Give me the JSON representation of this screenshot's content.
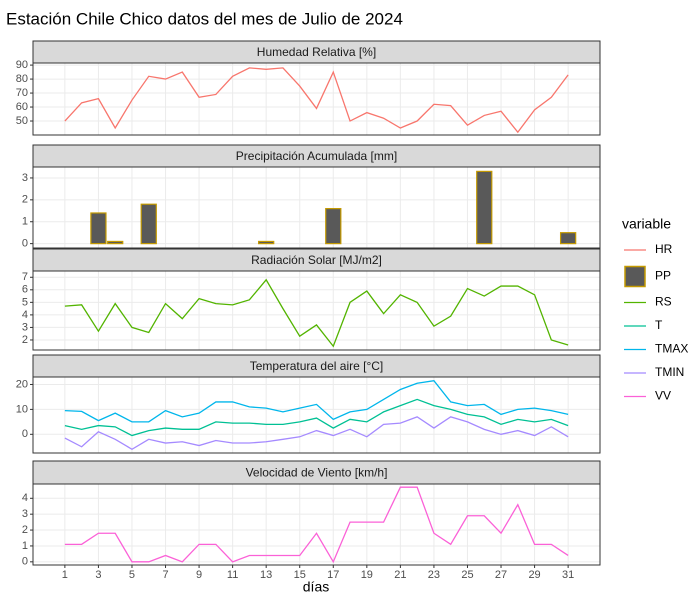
{
  "title": "Estación Chile Chico datos del mes de Julio de 2024",
  "xlabel": "días",
  "legend_title": "variable",
  "chart_data": [
    {
      "type": "line",
      "title": "Humedad Relativa [%]",
      "x": [
        1,
        2,
        3,
        4,
        5,
        6,
        7,
        8,
        9,
        10,
        11,
        12,
        13,
        14,
        15,
        16,
        17,
        18,
        19,
        20,
        21,
        22,
        23,
        24,
        25,
        26,
        27,
        28,
        29,
        30,
        31
      ],
      "xlim": [
        -0.9,
        32.9
      ],
      "xticks": [
        1,
        3,
        5,
        7,
        9,
        11,
        13,
        15,
        17,
        19,
        21,
        23,
        25,
        27,
        29,
        31
      ],
      "ylim": [
        40,
        91.5
      ],
      "yticks": [
        50,
        60,
        70,
        80,
        90
      ],
      "grid": true,
      "series": [
        {
          "name": "HR",
          "color": "#F8766D",
          "values": [
            50,
            63,
            66,
            45,
            65,
            82,
            80,
            85,
            67,
            69,
            82,
            88,
            87,
            88,
            75,
            59,
            85,
            50,
            56,
            52,
            45,
            50,
            62,
            61,
            47,
            54,
            57,
            42,
            58,
            67,
            83
          ]
        }
      ]
    },
    {
      "type": "bar",
      "title": "Precipitación Acumulada [mm]",
      "x": [
        1,
        2,
        3,
        4,
        5,
        6,
        7,
        8,
        9,
        10,
        11,
        12,
        13,
        14,
        15,
        16,
        17,
        18,
        19,
        20,
        21,
        22,
        23,
        24,
        25,
        26,
        27,
        28,
        29,
        30,
        31
      ],
      "xlim": [
        -0.9,
        32.9
      ],
      "xticks": [
        1,
        3,
        5,
        7,
        9,
        11,
        13,
        15,
        17,
        19,
        21,
        23,
        25,
        27,
        29,
        31
      ],
      "ylim": [
        -0.2,
        3.5
      ],
      "yticks": [
        0,
        1,
        2,
        3
      ],
      "grid": true,
      "series": [
        {
          "name": "PP",
          "color": "#C49A00",
          "fill": "#595959",
          "values": [
            0,
            0,
            1.4,
            0.1,
            0,
            1.8,
            0,
            0,
            0,
            0,
            0,
            0,
            0.1,
            0,
            0,
            0,
            1.6,
            0,
            0,
            0,
            0,
            0,
            0,
            0,
            0,
            3.3,
            0,
            0,
            0,
            0,
            0.5
          ]
        }
      ]
    },
    {
      "type": "line",
      "title": "Radiación Solar [MJ/m2]",
      "x": [
        1,
        2,
        3,
        4,
        5,
        6,
        7,
        8,
        9,
        10,
        11,
        12,
        13,
        14,
        15,
        16,
        17,
        18,
        19,
        20,
        21,
        22,
        23,
        24,
        25,
        26,
        27,
        28,
        29,
        30,
        31
      ],
      "xlim": [
        -0.9,
        32.9
      ],
      "xticks": [
        1,
        3,
        5,
        7,
        9,
        11,
        13,
        15,
        17,
        19,
        21,
        23,
        25,
        27,
        29,
        31
      ],
      "ylim": [
        1.2,
        7.5
      ],
      "yticks": [
        2,
        3,
        4,
        5,
        6,
        7
      ],
      "grid": true,
      "series": [
        {
          "name": "RS",
          "color": "#53B400",
          "values": [
            4.7,
            4.8,
            2.7,
            4.9,
            3.0,
            2.6,
            4.9,
            3.7,
            5.3,
            4.9,
            4.8,
            5.2,
            6.8,
            4.5,
            2.3,
            3.2,
            1.5,
            5.0,
            5.9,
            4.1,
            5.6,
            5.0,
            3.1,
            3.9,
            6.1,
            5.5,
            6.3,
            6.3,
            5.6,
            2.0,
            1.6
          ]
        }
      ]
    },
    {
      "type": "line",
      "title": "Temperatura del aire [°C]",
      "x": [
        1,
        2,
        3,
        4,
        5,
        6,
        7,
        8,
        9,
        10,
        11,
        12,
        13,
        14,
        15,
        16,
        17,
        18,
        19,
        20,
        21,
        22,
        23,
        24,
        25,
        26,
        27,
        28,
        29,
        30,
        31
      ],
      "xlim": [
        -0.9,
        32.9
      ],
      "xticks": [
        1,
        3,
        5,
        7,
        9,
        11,
        13,
        15,
        17,
        19,
        21,
        23,
        25,
        27,
        29,
        31
      ],
      "ylim": [
        -7.5,
        23
      ],
      "yticks": [
        0,
        10,
        20
      ],
      "grid": true,
      "series": [
        {
          "name": "T",
          "color": "#00C094",
          "values": [
            3.5,
            2,
            3.5,
            3,
            -0.5,
            1.5,
            2.5,
            2,
            2,
            5,
            4.5,
            4.5,
            4,
            4,
            5,
            6.5,
            2.5,
            6,
            5,
            9,
            11.5,
            14,
            11.5,
            10,
            8,
            7,
            4,
            6,
            5,
            6,
            3.5
          ]
        },
        {
          "name": "TMAX",
          "color": "#00B6EB",
          "values": [
            9.5,
            9.2,
            5.5,
            8.5,
            5,
            5,
            9.5,
            7,
            8.5,
            13,
            13,
            11,
            10.5,
            9,
            10.5,
            12,
            6,
            9,
            10,
            14,
            18,
            20.5,
            21.5,
            13,
            11.5,
            12,
            8,
            10,
            10.5,
            9.5,
            8
          ]
        },
        {
          "name": "TMIN",
          "color": "#A58AFF",
          "values": [
            -1.5,
            -5,
            1,
            -2,
            -6,
            -2,
            -3.5,
            -3,
            -4.5,
            -2.5,
            -3.5,
            -3.5,
            -3,
            -2,
            -1,
            1.5,
            -0.5,
            2,
            -1,
            4,
            4.5,
            7,
            2.5,
            7,
            5,
            2,
            0,
            1.5,
            -0.5,
            3,
            -1
          ]
        }
      ]
    },
    {
      "type": "line",
      "title": "Velocidad de Viento [km/h]",
      "x": [
        1,
        2,
        3,
        4,
        5,
        6,
        7,
        8,
        9,
        10,
        11,
        12,
        13,
        14,
        15,
        16,
        17,
        18,
        19,
        20,
        21,
        22,
        23,
        24,
        25,
        26,
        27,
        28,
        29,
        30,
        31
      ],
      "xlim": [
        -0.9,
        32.9
      ],
      "xticks": [
        1,
        3,
        5,
        7,
        9,
        11,
        13,
        15,
        17,
        19,
        21,
        23,
        25,
        27,
        29,
        31
      ],
      "ylim": [
        -0.2,
        4.9
      ],
      "yticks": [
        0,
        1,
        2,
        3,
        4
      ],
      "grid": true,
      "series": [
        {
          "name": "VV",
          "color": "#FB61D7",
          "values": [
            1.1,
            1.1,
            1.8,
            1.8,
            0,
            0,
            0.4,
            0,
            1.1,
            1.1,
            0,
            0.4,
            0.4,
            0.4,
            0.4,
            1.8,
            0,
            2.5,
            2.5,
            2.5,
            4.7,
            4.7,
            1.8,
            1.1,
            2.9,
            2.9,
            1.8,
            3.6,
            1.1,
            1.1,
            0.4
          ]
        }
      ]
    }
  ]
}
